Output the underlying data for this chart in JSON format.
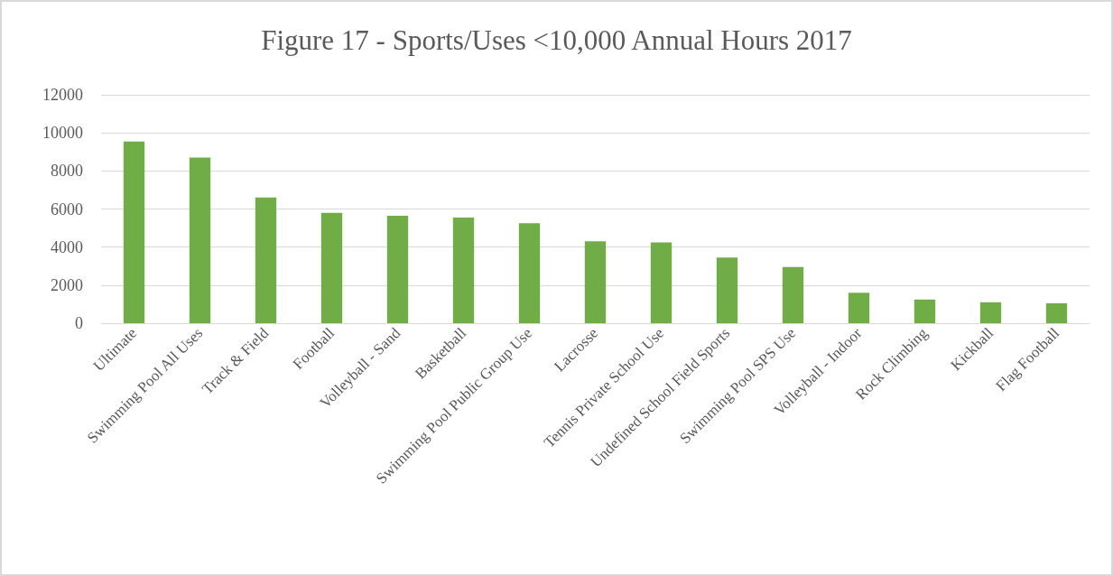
{
  "chart_data": {
    "type": "bar",
    "title": "Figure 17 - Sports/Uses <10,000 Annual Hours 2017",
    "categories": [
      "Ultimate",
      "Swimming Pool All Uses",
      "Track & Field",
      "Football",
      "Volleyball - Sand",
      "Basketball",
      "Swimming Pool Public Group Use",
      "Lacrosse",
      "Tennis Private School Use",
      "Undefined School Field Sports",
      "Swimming Pool SPS Use",
      "Volleyball - Indoor",
      "Rock Climbing",
      "Kickball",
      "Flag Football"
    ],
    "values": [
      9550,
      8700,
      6600,
      5800,
      5650,
      5550,
      5250,
      4300,
      4250,
      3450,
      2950,
      1600,
      1250,
      1100,
      1050
    ],
    "color": "#70ad47",
    "ylim": [
      0,
      12000
    ],
    "yticks": [
      0,
      2000,
      4000,
      6000,
      8000,
      10000,
      12000
    ],
    "grid": "y"
  }
}
